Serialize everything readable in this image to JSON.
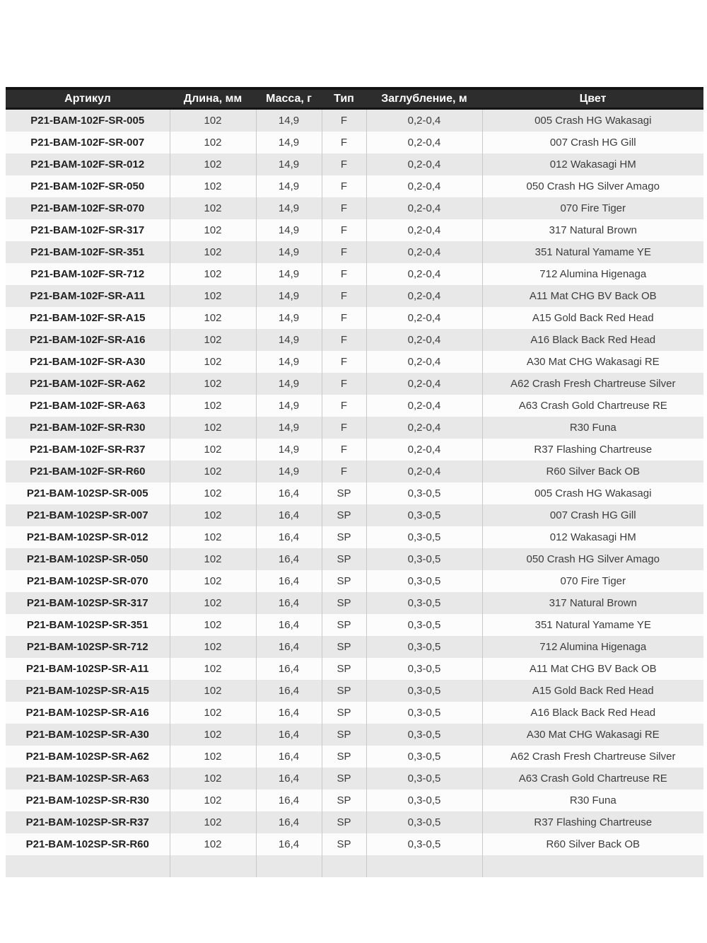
{
  "table": {
    "columns": [
      {
        "key": "article",
        "label": "Артикул"
      },
      {
        "key": "length",
        "label": "Длина, мм"
      },
      {
        "key": "mass",
        "label": "Масса, г"
      },
      {
        "key": "type",
        "label": "Тип"
      },
      {
        "key": "depth",
        "label": "Заглубление, м"
      },
      {
        "key": "color",
        "label": "Цвет"
      }
    ],
    "rows": [
      [
        "P21-BAM-102F-SR-005",
        "102",
        "14,9",
        "F",
        "0,2-0,4",
        "005 Crash HG Wakasagi"
      ],
      [
        "P21-BAM-102F-SR-007",
        "102",
        "14,9",
        "F",
        "0,2-0,4",
        "007 Crash HG Gill"
      ],
      [
        "P21-BAM-102F-SR-012",
        "102",
        "14,9",
        "F",
        "0,2-0,4",
        "012 Wakasagi HM"
      ],
      [
        "P21-BAM-102F-SR-050",
        "102",
        "14,9",
        "F",
        "0,2-0,4",
        "050 Crash HG Silver Amago"
      ],
      [
        "P21-BAM-102F-SR-070",
        "102",
        "14,9",
        "F",
        "0,2-0,4",
        "070 Fire Tiger"
      ],
      [
        "P21-BAM-102F-SR-317",
        "102",
        "14,9",
        "F",
        "0,2-0,4",
        "317 Natural Brown"
      ],
      [
        "P21-BAM-102F-SR-351",
        "102",
        "14,9",
        "F",
        "0,2-0,4",
        "351 Natural Yamame YE"
      ],
      [
        "P21-BAM-102F-SR-712",
        "102",
        "14,9",
        "F",
        "0,2-0,4",
        "712 Alumina Higenaga"
      ],
      [
        "P21-BAM-102F-SR-A11",
        "102",
        "14,9",
        "F",
        "0,2-0,4",
        "A11 Mat CHG BV Back OB"
      ],
      [
        "P21-BAM-102F-SR-A15",
        "102",
        "14,9",
        "F",
        "0,2-0,4",
        "A15 Gold Back Red Head"
      ],
      [
        "P21-BAM-102F-SR-A16",
        "102",
        "14,9",
        "F",
        "0,2-0,4",
        "A16 Black Back Red Head"
      ],
      [
        "P21-BAM-102F-SR-A30",
        "102",
        "14,9",
        "F",
        "0,2-0,4",
        "A30 Mat CHG Wakasagi RE"
      ],
      [
        "P21-BAM-102F-SR-A62",
        "102",
        "14,9",
        "F",
        "0,2-0,4",
        "A62 Crash Fresh Chartreuse Silver"
      ],
      [
        "P21-BAM-102F-SR-A63",
        "102",
        "14,9",
        "F",
        "0,2-0,4",
        "A63 Crash Gold Chartreuse RE"
      ],
      [
        "P21-BAM-102F-SR-R30",
        "102",
        "14,9",
        "F",
        "0,2-0,4",
        "R30 Funa"
      ],
      [
        "P21-BAM-102F-SR-R37",
        "102",
        "14,9",
        "F",
        "0,2-0,4",
        "R37 Flashing Chartreuse"
      ],
      [
        "P21-BAM-102F-SR-R60",
        "102",
        "14,9",
        "F",
        "0,2-0,4",
        "R60 Silver Back OB"
      ],
      [
        "P21-BAM-102SP-SR-005",
        "102",
        "16,4",
        "SP",
        "0,3-0,5",
        "005 Crash HG Wakasagi"
      ],
      [
        "P21-BAM-102SP-SR-007",
        "102",
        "16,4",
        "SP",
        "0,3-0,5",
        "007 Crash HG Gill"
      ],
      [
        "P21-BAM-102SP-SR-012",
        "102",
        "16,4",
        "SP",
        "0,3-0,5",
        "012 Wakasagi HM"
      ],
      [
        "P21-BAM-102SP-SR-050",
        "102",
        "16,4",
        "SP",
        "0,3-0,5",
        "050 Crash HG Silver Amago"
      ],
      [
        "P21-BAM-102SP-SR-070",
        "102",
        "16,4",
        "SP",
        "0,3-0,5",
        "070 Fire Tiger"
      ],
      [
        "P21-BAM-102SP-SR-317",
        "102",
        "16,4",
        "SP",
        "0,3-0,5",
        "317 Natural Brown"
      ],
      [
        "P21-BAM-102SP-SR-351",
        "102",
        "16,4",
        "SP",
        "0,3-0,5",
        "351 Natural Yamame YE"
      ],
      [
        "P21-BAM-102SP-SR-712",
        "102",
        "16,4",
        "SP",
        "0,3-0,5",
        "712 Alumina Higenaga"
      ],
      [
        "P21-BAM-102SP-SR-A11",
        "102",
        "16,4",
        "SP",
        "0,3-0,5",
        "A11 Mat CHG BV Back OB"
      ],
      [
        "P21-BAM-102SP-SR-A15",
        "102",
        "16,4",
        "SP",
        "0,3-0,5",
        "A15 Gold Back Red Head"
      ],
      [
        "P21-BAM-102SP-SR-A16",
        "102",
        "16,4",
        "SP",
        "0,3-0,5",
        "A16 Black Back Red Head"
      ],
      [
        "P21-BAM-102SP-SR-A30",
        "102",
        "16,4",
        "SP",
        "0,3-0,5",
        "A30 Mat CHG Wakasagi RE"
      ],
      [
        "P21-BAM-102SP-SR-A62",
        "102",
        "16,4",
        "SP",
        "0,3-0,5",
        "A62 Crash Fresh Chartreuse Silver"
      ],
      [
        "P21-BAM-102SP-SR-A63",
        "102",
        "16,4",
        "SP",
        "0,3-0,5",
        "A63 Crash Gold Chartreuse RE"
      ],
      [
        "P21-BAM-102SP-SR-R30",
        "102",
        "16,4",
        "SP",
        "0,3-0,5",
        "R30 Funa"
      ],
      [
        "P21-BAM-102SP-SR-R37",
        "102",
        "16,4",
        "SP",
        "0,3-0,5",
        "R37 Flashing Chartreuse"
      ],
      [
        "P21-BAM-102SP-SR-R60",
        "102",
        "16,4",
        "SP",
        "0,3-0,5",
        "R60 Silver Back OB"
      ]
    ],
    "colors": {
      "header_bg": "#2d2d2d",
      "header_border": "#131313",
      "header_text": "#ffffff",
      "stripe_gray": "#e8e8e8",
      "row_white": "#fcfcfc",
      "divider": "#c9c9c9",
      "body_text": "#3c3c3c",
      "article_text": "#222222"
    }
  }
}
